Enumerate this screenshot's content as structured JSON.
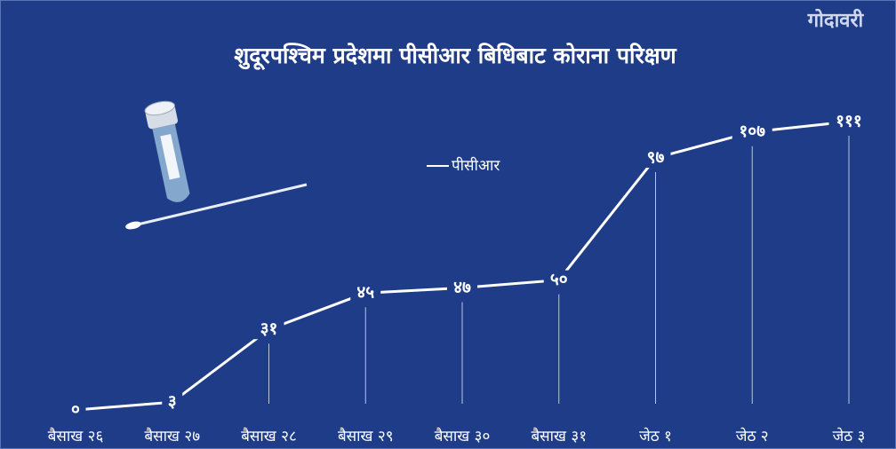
{
  "logo": "गोदावरी",
  "chart_data": {
    "type": "line",
    "title": "शुदूरपश्चिम प्रदेशमा पीसीआर बिधिबाट कोराना परिक्षण",
    "categories": [
      "बैसाख २६",
      "बैसाख २७",
      "बैसाख २८",
      "बैसाख २९",
      "बैसाख ३०",
      "बैसाख ३१",
      "जेठ १",
      "जेठ २",
      "जेठ ३"
    ],
    "series": [
      {
        "name": "पीसीआर",
        "color": "#ffffff",
        "values": [
          0,
          3,
          31,
          45,
          47,
          50,
          97,
          107,
          111
        ],
        "value_labels": [
          "०",
          "३",
          "३१",
          "४५",
          "४७",
          "५०",
          "९७",
          "१०७",
          "१११"
        ]
      }
    ]
  }
}
